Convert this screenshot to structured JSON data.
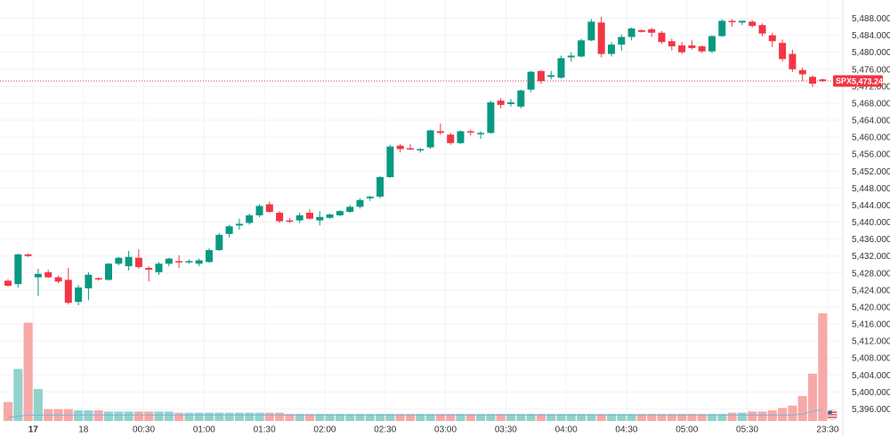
{
  "chart_data": {
    "type": "candlestick",
    "symbol": "SPX",
    "last_price": 5473.24,
    "last_price_label": "5,473.24",
    "ylim": [
      5394,
      5490
    ],
    "y_ticks": [
      5396,
      5400,
      5404,
      5408,
      5412,
      5416,
      5420,
      5424,
      5428,
      5432,
      5436,
      5440,
      5444,
      5448,
      5452,
      5456,
      5460,
      5464,
      5468,
      5472,
      5476,
      5480,
      5484,
      5488
    ],
    "x_ticks": [
      {
        "label": "17",
        "index": 2.5,
        "bold": true
      },
      {
        "label": "18",
        "index": 7.5
      },
      {
        "label": "00:30",
        "index": 13.5
      },
      {
        "label": "01:00",
        "index": 19.5
      },
      {
        "label": "01:30",
        "index": 25.5
      },
      {
        "label": "02:00",
        "index": 31.5
      },
      {
        "label": "02:30",
        "index": 37.5
      },
      {
        "label": "03:00",
        "index": 43.5
      },
      {
        "label": "03:30",
        "index": 49.5
      },
      {
        "label": "04:00",
        "index": 55.5
      },
      {
        "label": "04:30",
        "index": 61.5
      },
      {
        "label": "05:00",
        "index": 67.5
      },
      {
        "label": "05:30",
        "index": 73.5
      },
      {
        "label": "23:30",
        "index": 81.5
      }
    ],
    "colors": {
      "up": "#089981",
      "down": "#f23645",
      "vol_up": "#92d2cc",
      "vol_down": "#f7a9a7",
      "grid": "#f0f3fa",
      "price_line": "#f23645",
      "axis_text": "#333333"
    },
    "candles": [
      [
        5426.2,
        5426.6,
        5424.8,
        5425.0
      ],
      [
        5425.4,
        5432.6,
        5424.6,
        5432.4
      ],
      [
        5432.4,
        5432.6,
        5431.8,
        5432.0
      ],
      [
        5427.0,
        5429.0,
        5422.6,
        5427.8
      ],
      [
        5428.2,
        5428.8,
        5426.8,
        5427.0
      ],
      [
        5427.0,
        5427.4,
        5425.6,
        5426.0
      ],
      [
        5426.4,
        5429.2,
        5420.6,
        5421.0
      ],
      [
        5421.2,
        5425.2,
        5420.4,
        5424.6
      ],
      [
        5424.4,
        5428.2,
        5421.6,
        5427.6
      ],
      [
        5426.8,
        5427.0,
        5426.2,
        5426.6
      ],
      [
        5426.4,
        5430.4,
        5426.2,
        5430.2
      ],
      [
        5430.2,
        5431.8,
        5429.8,
        5431.6
      ],
      [
        5429.6,
        5433.2,
        5428.6,
        5431.8
      ],
      [
        5431.6,
        5433.6,
        5429.0,
        5429.4
      ],
      [
        5429.2,
        5429.6,
        5426.0,
        5428.8
      ],
      [
        5428.2,
        5430.6,
        5427.6,
        5430.2
      ],
      [
        5430.2,
        5431.6,
        5429.6,
        5431.4
      ],
      [
        5430.8,
        5432.2,
        5429.2,
        5430.6
      ],
      [
        5430.6,
        5431.2,
        5430.2,
        5430.8
      ],
      [
        5430.2,
        5431.4,
        5429.6,
        5431.0
      ],
      [
        5430.6,
        5433.8,
        5430.4,
        5433.4
      ],
      [
        5433.4,
        5437.4,
        5433.2,
        5437.0
      ],
      [
        5437.2,
        5439.4,
        5436.4,
        5439.0
      ],
      [
        5439.2,
        5440.8,
        5438.2,
        5439.6
      ],
      [
        5439.8,
        5442.0,
        5439.4,
        5441.6
      ],
      [
        5441.6,
        5444.2,
        5441.2,
        5443.8
      ],
      [
        5444.2,
        5444.8,
        5442.2,
        5442.4
      ],
      [
        5442.2,
        5442.6,
        5439.8,
        5440.2
      ],
      [
        5440.4,
        5441.0,
        5439.8,
        5440.2
      ],
      [
        5440.4,
        5442.2,
        5439.8,
        5441.6
      ],
      [
        5442.2,
        5443.0,
        5440.6,
        5440.8
      ],
      [
        5440.4,
        5442.6,
        5439.2,
        5441.2
      ],
      [
        5441.0,
        5442.0,
        5440.8,
        5441.8
      ],
      [
        5441.6,
        5442.8,
        5441.4,
        5442.6
      ],
      [
        5442.4,
        5444.0,
        5442.2,
        5443.6
      ],
      [
        5443.6,
        5445.6,
        5443.2,
        5445.2
      ],
      [
        5445.6,
        5446.2,
        5445.0,
        5446.0
      ],
      [
        5446.0,
        5450.8,
        5445.6,
        5450.6
      ],
      [
        5450.6,
        5458.2,
        5450.4,
        5457.8
      ],
      [
        5458.0,
        5458.4,
        5456.4,
        5457.2
      ],
      [
        5457.4,
        5458.4,
        5457.0,
        5457.2
      ],
      [
        5457.0,
        5457.4,
        5456.4,
        5457.2
      ],
      [
        5457.6,
        5461.8,
        5457.2,
        5461.6
      ],
      [
        5461.4,
        5463.2,
        5460.6,
        5461.0
      ],
      [
        5460.6,
        5461.0,
        5458.2,
        5458.6
      ],
      [
        5458.6,
        5461.6,
        5458.4,
        5461.4
      ],
      [
        5461.4,
        5461.8,
        5460.4,
        5461.2
      ],
      [
        5460.8,
        5461.4,
        5459.6,
        5461.0
      ],
      [
        5461.0,
        5468.6,
        5460.8,
        5468.2
      ],
      [
        5468.6,
        5469.2,
        5466.8,
        5467.6
      ],
      [
        5467.8,
        5469.0,
        5467.2,
        5468.2
      ],
      [
        5467.2,
        5471.2,
        5466.8,
        5471.0
      ],
      [
        5471.2,
        5475.6,
        5470.6,
        5475.4
      ],
      [
        5475.6,
        5475.8,
        5472.6,
        5473.2
      ],
      [
        5474.2,
        5475.6,
        5473.6,
        5474.6
      ],
      [
        5474.0,
        5479.2,
        5473.8,
        5478.6
      ],
      [
        5478.8,
        5480.0,
        5477.8,
        5479.2
      ],
      [
        5479.0,
        5483.2,
        5478.8,
        5482.8
      ],
      [
        5482.8,
        5487.8,
        5482.6,
        5487.2
      ],
      [
        5487.0,
        5488.4,
        5478.8,
        5479.6
      ],
      [
        5479.6,
        5482.4,
        5479.0,
        5481.8
      ],
      [
        5481.8,
        5484.2,
        5480.4,
        5483.6
      ],
      [
        5483.6,
        5485.8,
        5482.8,
        5485.6
      ],
      [
        5485.2,
        5485.4,
        5484.6,
        5484.8
      ],
      [
        5485.4,
        5485.8,
        5483.6,
        5484.6
      ],
      [
        5484.6,
        5485.0,
        5482.0,
        5482.4
      ],
      [
        5482.6,
        5483.2,
        5480.4,
        5481.4
      ],
      [
        5481.6,
        5482.4,
        5479.6,
        5480.0
      ],
      [
        5481.6,
        5482.8,
        5480.6,
        5481.0
      ],
      [
        5481.4,
        5481.6,
        5479.8,
        5480.2
      ],
      [
        5480.2,
        5484.0,
        5479.8,
        5483.8
      ],
      [
        5483.8,
        5487.8,
        5483.6,
        5487.4
      ],
      [
        5487.4,
        5487.8,
        5486.0,
        5487.2
      ],
      [
        5487.0,
        5487.4,
        5486.4,
        5487.4
      ],
      [
        5487.2,
        5487.6,
        5485.8,
        5486.2
      ],
      [
        5486.4,
        5486.8,
        5483.8,
        5484.4
      ],
      [
        5484.0,
        5484.6,
        5481.2,
        5482.6
      ],
      [
        5482.2,
        5483.0,
        5477.8,
        5478.4
      ],
      [
        5479.6,
        5480.6,
        5475.4,
        5476.0
      ],
      [
        5475.8,
        5476.4,
        5473.2,
        5474.8
      ],
      [
        5474.2,
        5474.6,
        5471.8,
        5472.6
      ],
      [
        5473.6,
        5473.8,
        5473.0,
        5473.2
      ]
    ],
    "volume_fraction": [
      0.16,
      0.44,
      0.83,
      0.27,
      0.1,
      0.1,
      0.1,
      0.09,
      0.09,
      0.09,
      0.08,
      0.08,
      0.08,
      0.08,
      0.08,
      0.08,
      0.08,
      0.07,
      0.07,
      0.07,
      0.07,
      0.07,
      0.07,
      0.07,
      0.07,
      0.07,
      0.07,
      0.07,
      0.06,
      0.06,
      0.06,
      0.06,
      0.06,
      0.06,
      0.06,
      0.06,
      0.06,
      0.06,
      0.06,
      0.06,
      0.06,
      0.06,
      0.06,
      0.06,
      0.06,
      0.06,
      0.06,
      0.06,
      0.06,
      0.06,
      0.06,
      0.06,
      0.06,
      0.06,
      0.06,
      0.06,
      0.06,
      0.06,
      0.06,
      0.06,
      0.06,
      0.06,
      0.06,
      0.06,
      0.06,
      0.06,
      0.06,
      0.06,
      0.06,
      0.06,
      0.06,
      0.06,
      0.07,
      0.07,
      0.08,
      0.08,
      0.09,
      0.11,
      0.13,
      0.21,
      0.4,
      0.91
    ],
    "volume_ma_fraction": [
      0.03,
      0.04,
      0.05,
      0.05,
      0.05,
      0.05,
      0.05,
      0.05,
      0.05,
      0.05,
      0.05,
      0.05,
      0.05,
      0.05,
      0.05,
      0.05,
      0.05,
      0.05,
      0.05,
      0.05,
      0.05,
      0.05,
      0.05,
      0.05,
      0.05,
      0.05,
      0.05,
      0.05,
      0.05,
      0.05,
      0.05,
      0.05,
      0.05,
      0.05,
      0.05,
      0.05,
      0.05,
      0.05,
      0.05,
      0.05,
      0.05,
      0.05,
      0.05,
      0.05,
      0.05,
      0.05,
      0.05,
      0.05,
      0.05,
      0.05,
      0.05,
      0.05,
      0.05,
      0.05,
      0.05,
      0.05,
      0.05,
      0.05,
      0.05,
      0.05,
      0.05,
      0.05,
      0.05,
      0.05,
      0.05,
      0.05,
      0.05,
      0.05,
      0.05,
      0.05,
      0.05,
      0.05,
      0.05,
      0.05,
      0.05,
      0.05,
      0.05,
      0.05,
      0.05,
      0.06,
      0.08,
      0.1
    ]
  }
}
